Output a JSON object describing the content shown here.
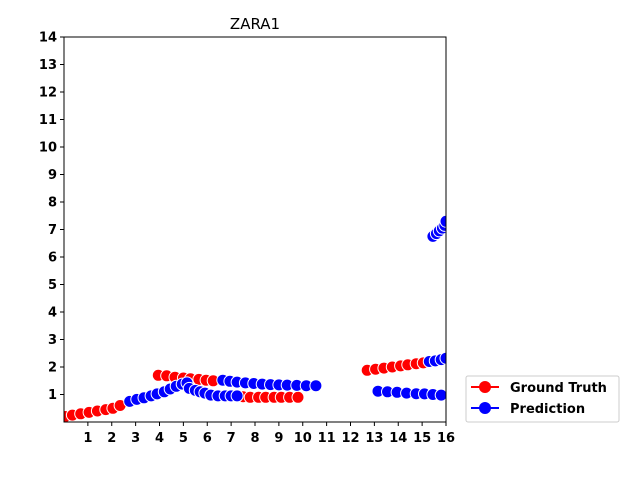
{
  "chart_data": {
    "type": "scatter",
    "title": "ZARA1",
    "xlabel": "",
    "ylabel": "",
    "xlim": [
      0,
      16
    ],
    "ylim": [
      0,
      14
    ],
    "x_ticks": [
      1,
      2,
      3,
      4,
      5,
      6,
      7,
      8,
      9,
      10,
      11,
      12,
      13,
      14,
      15,
      16
    ],
    "y_ticks": [
      1,
      2,
      3,
      4,
      5,
      6,
      7,
      8,
      9,
      10,
      11,
      12,
      13,
      14
    ],
    "grid": false,
    "legend_position": "outside-bottom-right",
    "series": [
      {
        "name": "Ground Truth",
        "color": "#ff0000",
        "points": [
          [
            0.05,
            0.2
          ],
          [
            0.35,
            0.25
          ],
          [
            0.7,
            0.3
          ],
          [
            1.05,
            0.35
          ],
          [
            1.4,
            0.4
          ],
          [
            1.75,
            0.45
          ],
          [
            2.05,
            0.5
          ],
          [
            2.35,
            0.6
          ],
          [
            3.95,
            1.7
          ],
          [
            4.3,
            1.68
          ],
          [
            4.65,
            1.63
          ],
          [
            5.0,
            1.6
          ],
          [
            5.3,
            1.57
          ],
          [
            5.65,
            1.55
          ],
          [
            5.95,
            1.52
          ],
          [
            6.25,
            1.5
          ],
          [
            7.5,
            0.92
          ],
          [
            7.8,
            0.9
          ],
          [
            8.15,
            0.9
          ],
          [
            8.45,
            0.9
          ],
          [
            8.8,
            0.9
          ],
          [
            9.1,
            0.9
          ],
          [
            9.45,
            0.9
          ],
          [
            9.8,
            0.9
          ],
          [
            12.7,
            1.88
          ],
          [
            13.05,
            1.92
          ],
          [
            13.4,
            1.96
          ],
          [
            13.75,
            2.0
          ],
          [
            14.1,
            2.04
          ],
          [
            14.4,
            2.08
          ],
          [
            14.75,
            2.12
          ],
          [
            15.05,
            2.15
          ]
        ]
      },
      {
        "name": "Prediction",
        "color": "#0000ff",
        "points": [
          [
            2.75,
            0.75
          ],
          [
            3.05,
            0.82
          ],
          [
            3.35,
            0.88
          ],
          [
            3.65,
            0.95
          ],
          [
            3.9,
            1.02
          ],
          [
            4.2,
            1.1
          ],
          [
            4.45,
            1.2
          ],
          [
            4.7,
            1.3
          ],
          [
            4.95,
            1.38
          ],
          [
            5.15,
            1.42
          ],
          [
            5.25,
            1.22
          ],
          [
            5.5,
            1.15
          ],
          [
            5.7,
            1.1
          ],
          [
            5.9,
            1.05
          ],
          [
            6.15,
            0.98
          ],
          [
            6.45,
            0.95
          ],
          [
            6.75,
            0.95
          ],
          [
            7.0,
            0.95
          ],
          [
            7.25,
            0.95
          ],
          [
            6.65,
            1.52
          ],
          [
            6.95,
            1.48
          ],
          [
            7.25,
            1.45
          ],
          [
            7.6,
            1.42
          ],
          [
            7.95,
            1.4
          ],
          [
            8.3,
            1.38
          ],
          [
            8.65,
            1.36
          ],
          [
            9.0,
            1.35
          ],
          [
            9.35,
            1.34
          ],
          [
            9.75,
            1.33
          ],
          [
            10.15,
            1.32
          ],
          [
            10.55,
            1.32
          ],
          [
            13.15,
            1.12
          ],
          [
            13.55,
            1.1
          ],
          [
            13.95,
            1.08
          ],
          [
            14.35,
            1.05
          ],
          [
            14.75,
            1.03
          ],
          [
            15.1,
            1.02
          ],
          [
            15.45,
            1.0
          ],
          [
            15.8,
            0.98
          ],
          [
            15.3,
            2.2
          ],
          [
            15.55,
            2.22
          ],
          [
            15.8,
            2.27
          ],
          [
            16.0,
            2.32
          ],
          [
            15.45,
            6.75
          ],
          [
            15.6,
            6.85
          ],
          [
            15.72,
            6.95
          ],
          [
            15.85,
            7.05
          ],
          [
            15.95,
            7.15
          ],
          [
            16.0,
            7.3
          ]
        ]
      }
    ]
  }
}
